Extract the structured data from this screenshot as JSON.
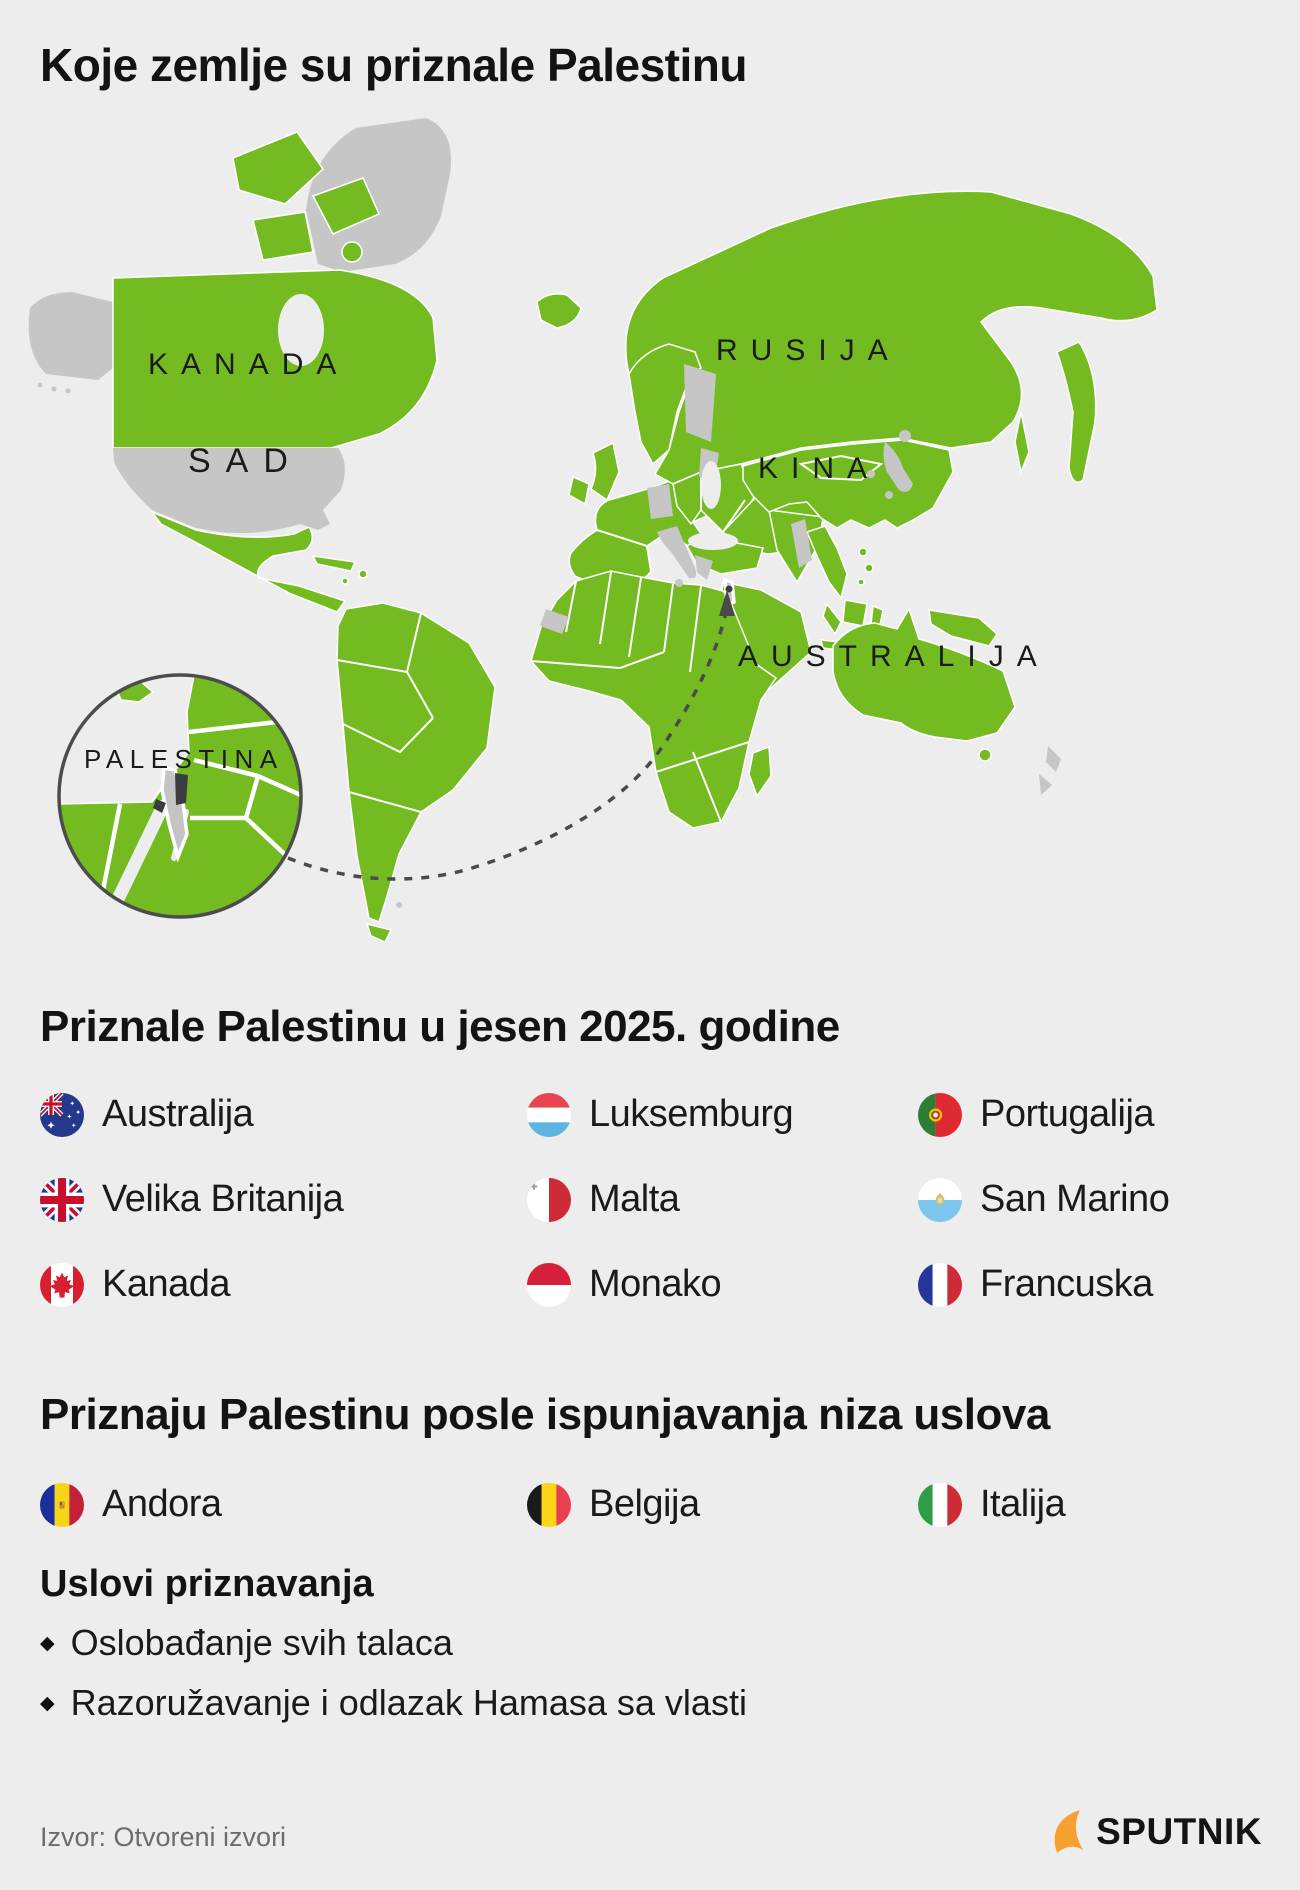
{
  "page": {
    "title": "Koje zemlje su priznale Palestinu"
  },
  "map": {
    "labels": {
      "kanada": "KANADA",
      "sad": "SAD",
      "rusija": "RUSIJA",
      "kina": "KINA",
      "australija": "AUSTRALIJA",
      "palestina": "PALESTINA"
    },
    "colors": {
      "recognized": "#74BB21",
      "not_recognized": "#C6C6C6",
      "palestinian_territories": "#3C3C3C",
      "inset_israel": "#C4C4C4",
      "background": "#EDEDED"
    }
  },
  "sections": [
    {
      "heading": "Priznale Palestinu u jesen 2025. godine",
      "items": [
        {
          "label": "Australija",
          "flag": "australia"
        },
        {
          "label": "Luksemburg",
          "flag": "luxembourg"
        },
        {
          "label": "Portugalija",
          "flag": "portugal"
        },
        {
          "label": "Velika Britanija",
          "flag": "uk"
        },
        {
          "label": "Malta",
          "flag": "malta"
        },
        {
          "label": "San Marino",
          "flag": "san-marino"
        },
        {
          "label": "Kanada",
          "flag": "canada"
        },
        {
          "label": "Monako",
          "flag": "monaco"
        },
        {
          "label": "Francuska",
          "flag": "france"
        }
      ]
    },
    {
      "heading": "Priznaju Palestinu posle ispunjavanja niza uslova",
      "items": [
        {
          "label": "Andora",
          "flag": "andorra"
        },
        {
          "label": "Belgija",
          "flag": "belgium"
        },
        {
          "label": "Italija",
          "flag": "italy"
        }
      ]
    }
  ],
  "conditions": {
    "heading": "Uslovi priznavanja",
    "items": [
      "Oslobađanje svih talaca",
      "Razoružavanje i odlazak Hamasa sa vlasti"
    ]
  },
  "footer": {
    "source": "Izvor: Otvoreni izvori",
    "brand": "SPUTNIK",
    "brand_accent": "#F6A12F"
  }
}
